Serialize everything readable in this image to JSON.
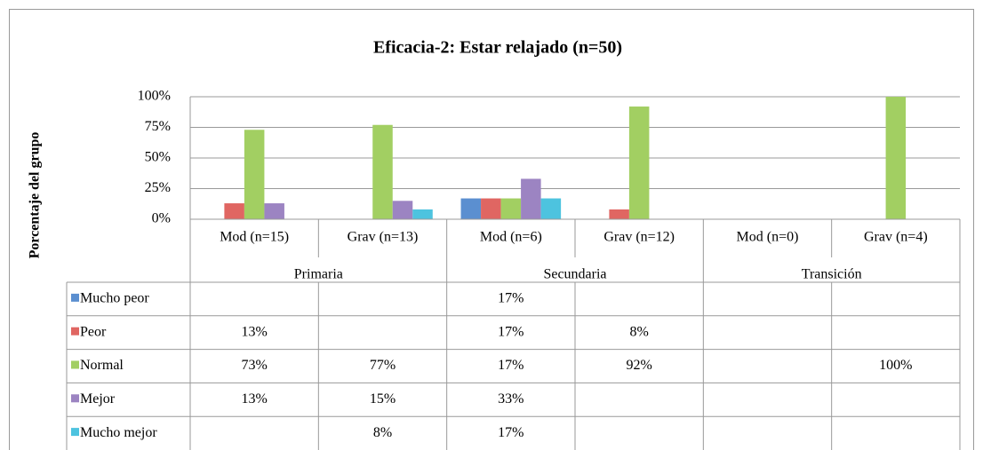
{
  "chart_data": {
    "type": "bar",
    "title": "Eficacia-2: Estar relajado (n=50)",
    "y_label": "Porcentaje del grupo",
    "categories": [
      "Mod (n=15)",
      "Grav (n=13)",
      "Mod (n=6)",
      "Grav (n=12)",
      "Mod (n=0)",
      "Grav (n=4)"
    ],
    "groups": [
      "Primaria",
      "Secundaria",
      "Transición"
    ],
    "series": [
      {
        "name": "Mucho peor",
        "color": "#5b8fd0",
        "values": [
          null,
          null,
          17,
          null,
          null,
          null
        ],
        "value_labels": [
          null,
          null,
          "17%",
          null,
          null,
          null
        ]
      },
      {
        "name": "Peor",
        "color": "#e06662",
        "values": [
          13,
          null,
          17,
          8,
          null,
          null
        ],
        "value_labels": [
          "13%",
          null,
          "17%",
          "8%",
          null,
          null
        ]
      },
      {
        "name": "Normal",
        "color": "#a2cf62",
        "values": [
          73,
          77,
          17,
          92,
          null,
          100
        ],
        "value_labels": [
          "73%",
          "77%",
          "17%",
          "92%",
          null,
          "100%"
        ]
      },
      {
        "name": "Mejor",
        "color": "#9c84c2",
        "values": [
          13,
          15,
          33,
          null,
          null,
          null
        ],
        "value_labels": [
          "13%",
          "15%",
          "33%",
          null,
          null,
          null
        ]
      },
      {
        "name": "Mucho mejor",
        "color": "#4dc3df",
        "values": [
          null,
          8,
          17,
          null,
          null,
          null
        ],
        "value_labels": [
          null,
          "8%",
          "17%",
          null,
          null,
          null
        ]
      }
    ],
    "ylim": [
      0,
      100
    ],
    "yticks": [
      {
        "value": 0,
        "label": "0%"
      },
      {
        "value": 25,
        "label": "25%"
      },
      {
        "value": 50,
        "label": "50%"
      },
      {
        "value": 75,
        "label": "75%"
      },
      {
        "value": 100,
        "label": "100%"
      }
    ],
    "grid": true
  }
}
